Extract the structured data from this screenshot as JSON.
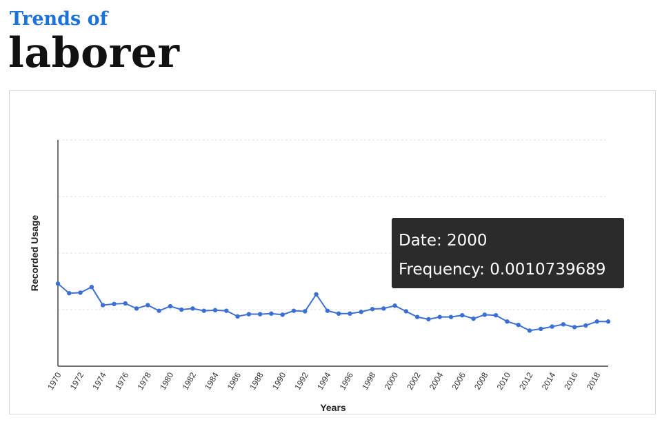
{
  "header": {
    "kicker": "Trends of",
    "word": "laborer"
  },
  "tooltip": {
    "date_label": "Date: 2000",
    "frequency_label": "Frequency: 0.0010739689"
  },
  "chart_data": {
    "type": "line",
    "title": "",
    "xlabel": "Years",
    "ylabel": "Recorded Usage",
    "xlim": [
      1970,
      2019
    ],
    "ylim": [
      0,
      0.004
    ],
    "grid": true,
    "x_tick_labels": [
      "1970",
      "1972",
      "1974",
      "1976",
      "1978",
      "1980",
      "1982",
      "1984",
      "1986",
      "1988",
      "1990",
      "1992",
      "1994",
      "1996",
      "1998",
      "2000",
      "2002",
      "2004",
      "2006",
      "2008",
      "2010",
      "2012",
      "2014",
      "2016",
      "2018"
    ],
    "series": [
      {
        "color": "#3b6fd4",
        "x": [
          1970,
          1971,
          1972,
          1973,
          1974,
          1975,
          1976,
          1977,
          1978,
          1979,
          1980,
          1981,
          1982,
          1983,
          1984,
          1985,
          1986,
          1987,
          1988,
          1989,
          1990,
          1991,
          1992,
          1993,
          1994,
          1995,
          1996,
          1997,
          1998,
          1999,
          2000,
          2001,
          2002,
          2003,
          2004,
          2005,
          2006,
          2007,
          2008,
          2009,
          2010,
          2011,
          2012,
          2013,
          2014,
          2015,
          2016,
          2017,
          2018,
          2019
        ],
        "y": [
          0.00146,
          0.00129,
          0.0013,
          0.0014,
          0.00108,
          0.0011,
          0.00111,
          0.00102,
          0.00108,
          0.00098,
          0.00106,
          0.001,
          0.00102,
          0.00098,
          0.00099,
          0.00098,
          0.00088,
          0.00092,
          0.00092,
          0.00093,
          0.00091,
          0.00098,
          0.00097,
          0.00127,
          0.00098,
          0.00093,
          0.00093,
          0.00096,
          0.00101,
          0.00102,
          0.00107,
          0.00097,
          0.00087,
          0.00083,
          0.00087,
          0.00087,
          0.0009,
          0.00084,
          0.00091,
          0.0009,
          0.00079,
          0.00073,
          0.00063,
          0.00066,
          0.0007,
          0.00074,
          0.00069,
          0.00072,
          0.00079,
          0.00079
        ]
      }
    ]
  }
}
